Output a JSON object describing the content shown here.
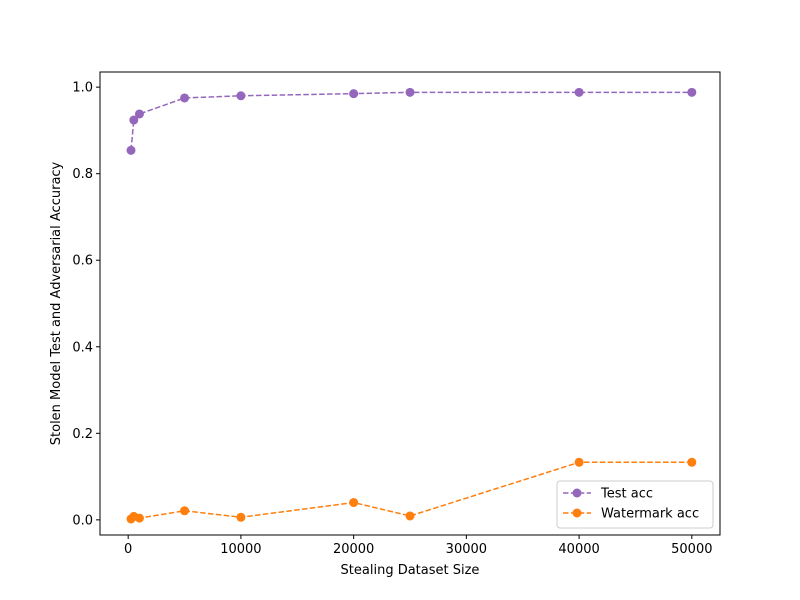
{
  "chart_data": {
    "type": "line",
    "title": "",
    "xlabel": "Stealing Dataset Size",
    "ylabel": "Stolen Model Test and Adversarial Accuracy",
    "xlim": [
      -2500,
      52500
    ],
    "ylim": [
      -0.035,
      1.035
    ],
    "xticks": [
      0,
      10000,
      20000,
      30000,
      40000,
      50000
    ],
    "xtick_labels": [
      "0",
      "10000",
      "20000",
      "30000",
      "40000",
      "50000"
    ],
    "yticks": [
      0.0,
      0.2,
      0.4,
      0.6,
      0.8,
      1.0
    ],
    "ytick_labels": [
      "0.0",
      "0.2",
      "0.4",
      "0.6",
      "0.8",
      "1.0"
    ],
    "grid": false,
    "legend_position": "lower right",
    "series": [
      {
        "name": "Test acc",
        "color": "#9467bd",
        "line_style": "dashed",
        "marker": "circle",
        "x": [
          250,
          500,
          1000,
          5000,
          10000,
          20000,
          25000,
          40000,
          50000
        ],
        "y": [
          0.854,
          0.924,
          0.938,
          0.975,
          0.98,
          0.985,
          0.988,
          0.988,
          0.988
        ]
      },
      {
        "name": "Watermark acc",
        "color": "#ff7f0e",
        "line_style": "dashed",
        "marker": "circle",
        "x": [
          250,
          500,
          1000,
          5000,
          10000,
          20000,
          25000,
          40000,
          50000
        ],
        "y": [
          0.002,
          0.008,
          0.004,
          0.021,
          0.006,
          0.04,
          0.009,
          0.133,
          0.133
        ]
      }
    ]
  }
}
